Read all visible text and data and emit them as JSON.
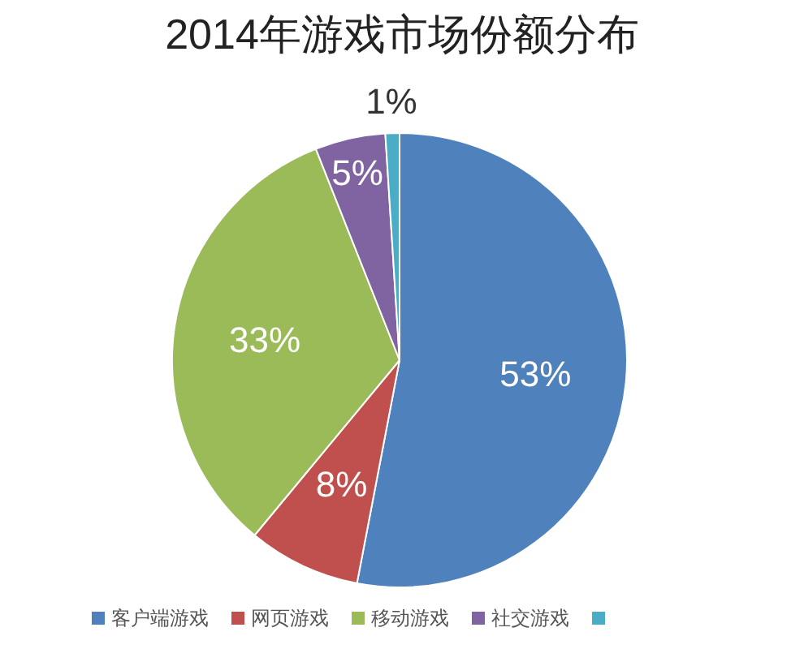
{
  "chart_data": {
    "type": "pie",
    "title": "2014年游戏市场份额分布",
    "categories": [
      "客户端游戏",
      "网页游戏",
      "移动游戏",
      "社交游戏",
      null
    ],
    "values": [
      53,
      8,
      33,
      5,
      1
    ],
    "colors": [
      "#4f81bd",
      "#c0504d",
      "#9bbb59",
      "#8064a2",
      "#4bacc6"
    ],
    "value_labels": [
      "53%",
      "8%",
      "33%",
      "5%",
      "1%"
    ],
    "legend": "bottom"
  }
}
